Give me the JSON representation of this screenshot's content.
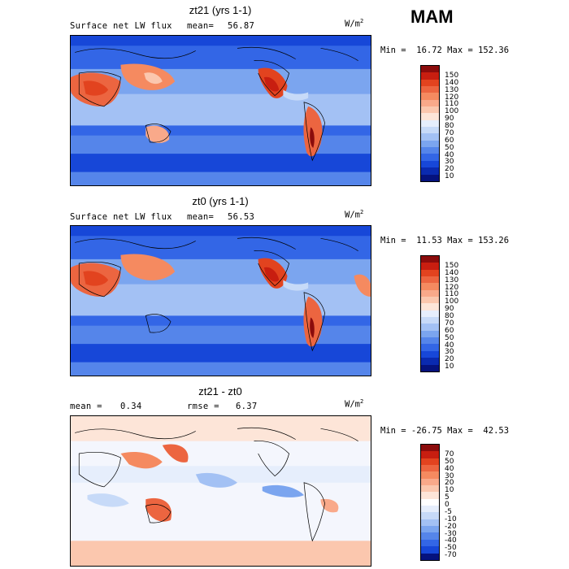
{
  "season": "MAM",
  "panels": [
    {
      "title": "zt21 (yrs 1-1)",
      "field_label": "Surface net LW flux",
      "mean_label": "mean=",
      "mean_value": "56.87",
      "units": "W/m",
      "units_exp": "2",
      "minmax": "Min =  16.72 Max = 152.36",
      "colorbar_labels": [
        "150",
        "140",
        "130",
        "120",
        "110",
        "100",
        "90",
        "80",
        "70",
        "60",
        "50",
        "40",
        "30",
        "20",
        "10"
      ],
      "colorbar_colors": [
        "#8b0c0c",
        "#c81e10",
        "#e2431f",
        "#ec6540",
        "#f58a60",
        "#f9a98a",
        "#fbc7ae",
        "#fde5d8",
        "#e6eefc",
        "#c7daf8",
        "#a3c1f4",
        "#7ba5ef",
        "#5585ea",
        "#3366e6",
        "#1747d8",
        "#0a2ab0",
        "#05127e"
      ]
    },
    {
      "title": "zt0 (yrs 1-1)",
      "field_label": "Surface net LW flux",
      "mean_label": "mean=",
      "mean_value": "56.53",
      "units": "W/m",
      "units_exp": "2",
      "minmax": "Min =  11.53 Max = 153.26",
      "colorbar_labels": [
        "150",
        "140",
        "130",
        "120",
        "110",
        "100",
        "90",
        "80",
        "70",
        "60",
        "50",
        "40",
        "30",
        "20",
        "10"
      ],
      "colorbar_colors": [
        "#8b0c0c",
        "#c81e10",
        "#e2431f",
        "#ec6540",
        "#f58a60",
        "#f9a98a",
        "#fbc7ae",
        "#fde5d8",
        "#e6eefc",
        "#c7daf8",
        "#a3c1f4",
        "#7ba5ef",
        "#5585ea",
        "#3366e6",
        "#1747d8",
        "#0a2ab0",
        "#05127e"
      ]
    },
    {
      "title": "zt21 - zt0",
      "mean_label": "mean =",
      "mean_value": "0.34",
      "rmse_label": "rmse =",
      "rmse_value": "6.37",
      "units": "W/m",
      "units_exp": "2",
      "minmax": "Min = -26.75 Max =  42.53",
      "colorbar_labels": [
        "70",
        "50",
        "40",
        "30",
        "20",
        "10",
        "5",
        "0",
        "-5",
        "-10",
        "-20",
        "-30",
        "-40",
        "-50",
        "-70"
      ],
      "colorbar_colors": [
        "#8b0c0c",
        "#c81e10",
        "#e2431f",
        "#ec6540",
        "#f58a60",
        "#f9a98a",
        "#fbc7ae",
        "#fde5d8",
        "#ffffff",
        "#e6eefc",
        "#c7daf8",
        "#a3c1f4",
        "#7ba5ef",
        "#5585ea",
        "#3366e6",
        "#1747d8",
        "#05127e"
      ]
    }
  ]
}
